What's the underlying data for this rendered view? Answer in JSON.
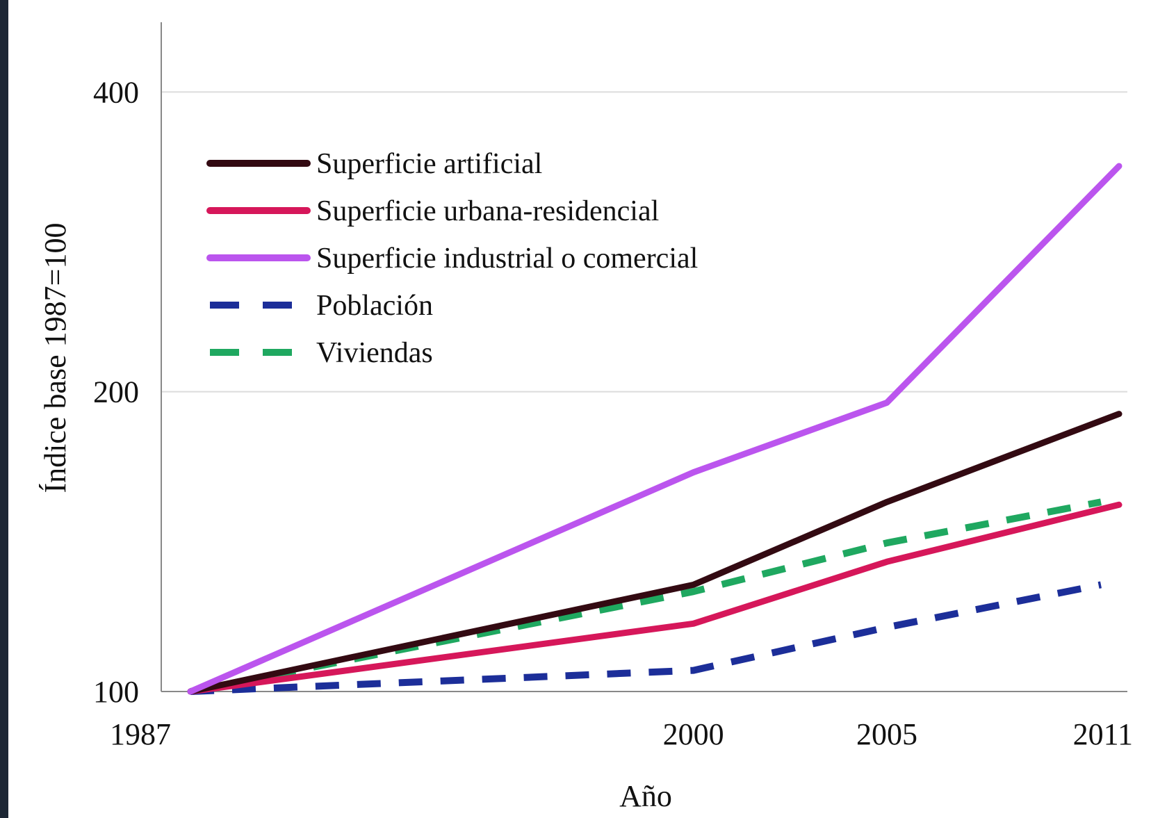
{
  "chart_data": {
    "type": "line",
    "x": [
      1987,
      2000,
      2005,
      2011
    ],
    "x_ticks": [
      "1987",
      "2000",
      "2005",
      "2011"
    ],
    "xlabel": "Año",
    "ylabel": "Índice base 1987=100",
    "y_scale": "log",
    "ylim": [
      100,
      470
    ],
    "y_ticks": [
      100,
      200,
      400
    ],
    "y_tick_labels": [
      "100",
      "200",
      "400"
    ],
    "grid": "horizontal",
    "legend_position": "top-left",
    "series": [
      {
        "name": "Superficie artificial",
        "values": [
          100,
          128,
          155,
          190
        ],
        "color": "#330a12",
        "dash": "solid"
      },
      {
        "name": "Superficie urbana-residencial",
        "values": [
          100,
          117,
          135,
          154
        ],
        "color": "#d6175a",
        "dash": "solid"
      },
      {
        "name": "Superficie industrial o comercial",
        "values": [
          100,
          166,
          195,
          337
        ],
        "color": "#bb55ee",
        "dash": "solid"
      },
      {
        "name": "Población",
        "values": [
          100,
          105,
          116,
          128
        ],
        "color": "#1c2e99",
        "dash": "dashed"
      },
      {
        "name": "Viviendas",
        "values": [
          100,
          126,
          141,
          155
        ],
        "color": "#1fa860",
        "dash": "dashed"
      }
    ]
  }
}
